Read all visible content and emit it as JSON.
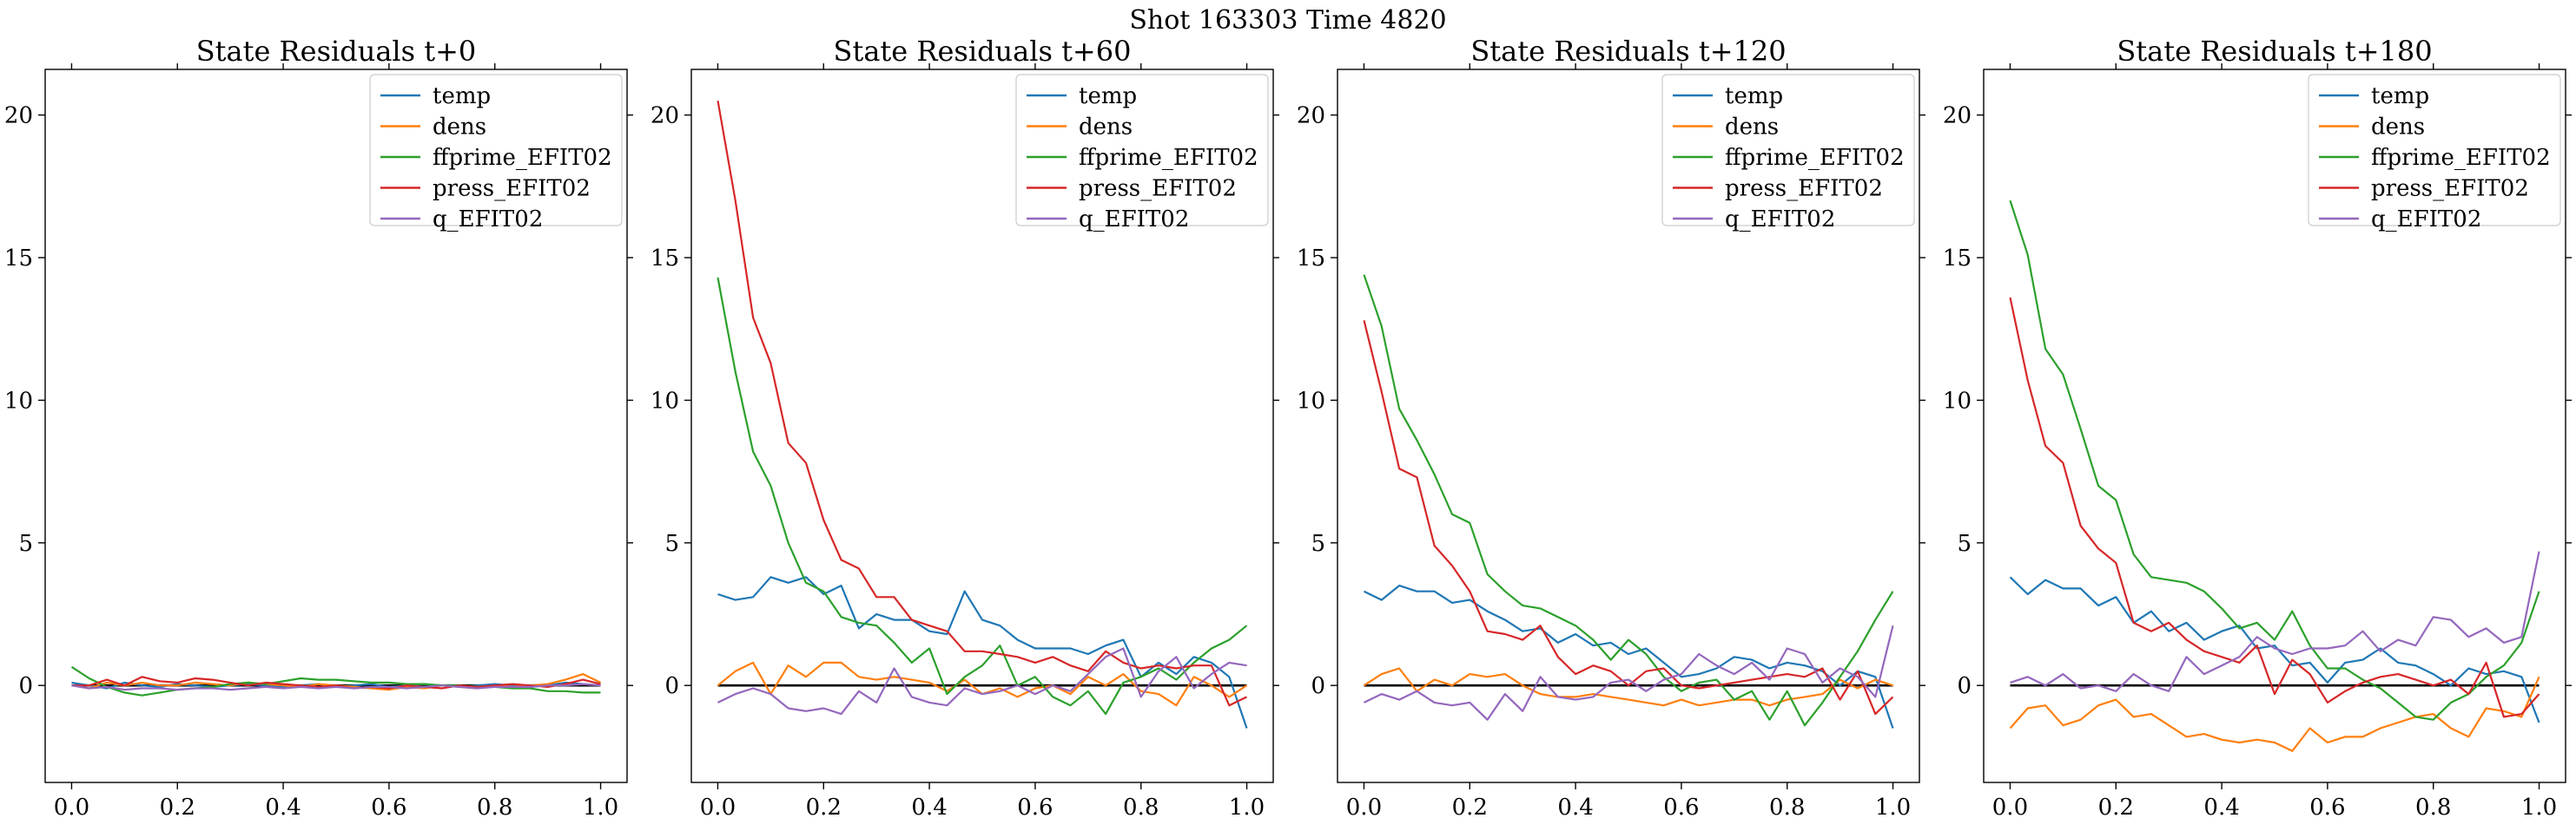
{
  "suptitle": "Shot 163303   Time 4820",
  "chart_data": [
    {
      "type": "line",
      "title": "State Residuals t+0",
      "xlabel": "",
      "ylabel": "",
      "xlim": [
        -0.05,
        1.05
      ],
      "ylim": [
        -3.4,
        21.6
      ],
      "xticks": [
        0.0,
        0.2,
        0.4,
        0.6,
        0.8,
        1.0
      ],
      "yticks": [
        0,
        5,
        10,
        15,
        20
      ],
      "grid": false,
      "legend_position": "upper-right",
      "zero_line": true,
      "x": [
        0.0,
        0.0333,
        0.0667,
        0.1,
        0.1333,
        0.1667,
        0.2,
        0.2333,
        0.2667,
        0.3,
        0.3333,
        0.3667,
        0.4,
        0.4333,
        0.4667,
        0.5,
        0.5333,
        0.5667,
        0.6,
        0.6333,
        0.6667,
        0.7,
        0.7333,
        0.7667,
        0.8,
        0.8333,
        0.8667,
        0.9,
        0.9333,
        0.9667,
        1.0
      ],
      "series": [
        {
          "name": "temp",
          "color": "#1f77b4",
          "values": [
            0.1,
            0.0,
            -0.1,
            0.1,
            0.0,
            -0.05,
            0.05,
            0.0,
            -0.05,
            0.0,
            0.05,
            0.0,
            -0.05,
            0.0,
            0.05,
            -0.05,
            0.0,
            0.05,
            -0.05,
            0.0,
            0.05,
            0.0,
            -0.05,
            0.0,
            0.05,
            0.0,
            -0.05,
            0.0,
            0.1,
            0.05,
            0.0
          ]
        },
        {
          "name": "dens",
          "color": "#ff7f0e",
          "values": [
            0.0,
            -0.1,
            0.1,
            0.0,
            0.1,
            0.0,
            0.0,
            0.1,
            0.05,
            0.0,
            0.1,
            0.05,
            0.0,
            -0.05,
            0.05,
            0.0,
            -0.05,
            -0.1,
            -0.15,
            -0.05,
            -0.1,
            0.0,
            -0.05,
            -0.1,
            0.0,
            -0.05,
            0.0,
            0.05,
            0.2,
            0.4,
            0.1
          ]
        },
        {
          "name": "ffprime_EFIT02",
          "color": "#2ca02c",
          "values": [
            0.65,
            0.25,
            -0.05,
            -0.25,
            -0.35,
            -0.25,
            -0.15,
            -0.1,
            -0.05,
            0.05,
            0.1,
            0.05,
            0.15,
            0.25,
            0.2,
            0.2,
            0.15,
            0.1,
            0.1,
            0.05,
            0.05,
            0.0,
            0.0,
            -0.05,
            -0.05,
            -0.1,
            -0.1,
            -0.2,
            -0.2,
            -0.25,
            -0.25
          ]
        },
        {
          "name": "press_EFIT02",
          "color": "#d62728",
          "values": [
            0.0,
            0.0,
            0.2,
            0.0,
            0.3,
            0.15,
            0.1,
            0.25,
            0.2,
            0.1,
            0.0,
            0.1,
            0.05,
            0.0,
            -0.05,
            0.0,
            -0.1,
            -0.05,
            -0.1,
            0.0,
            -0.05,
            -0.1,
            0.0,
            -0.05,
            0.0,
            0.05,
            0.0,
            -0.05,
            0.05,
            0.2,
            0.05
          ]
        },
        {
          "name": "q_EFIT02",
          "color": "#9467bd",
          "values": [
            0.0,
            -0.1,
            -0.05,
            -0.15,
            -0.1,
            -0.1,
            -0.15,
            -0.1,
            -0.1,
            -0.15,
            -0.1,
            -0.05,
            -0.1,
            -0.05,
            -0.1,
            -0.05,
            -0.1,
            -0.05,
            -0.05,
            -0.1,
            -0.05,
            0.0,
            -0.05,
            -0.1,
            -0.05,
            -0.05,
            -0.05,
            0.0,
            0.0,
            0.05,
            0.0
          ]
        }
      ]
    },
    {
      "type": "line",
      "title": "State Residuals t+60",
      "xlabel": "",
      "ylabel": "",
      "xlim": [
        -0.05,
        1.05
      ],
      "ylim": [
        -3.4,
        21.6
      ],
      "xticks": [
        0.0,
        0.2,
        0.4,
        0.6,
        0.8,
        1.0
      ],
      "yticks": [
        0,
        5,
        10,
        15,
        20
      ],
      "grid": false,
      "legend_position": "upper-right",
      "zero_line": true,
      "x": [
        0.0,
        0.0333,
        0.0667,
        0.1,
        0.1333,
        0.1667,
        0.2,
        0.2333,
        0.2667,
        0.3,
        0.3333,
        0.3667,
        0.4,
        0.4333,
        0.4667,
        0.5,
        0.5333,
        0.5667,
        0.6,
        0.6333,
        0.6667,
        0.7,
        0.7333,
        0.7667,
        0.8,
        0.8333,
        0.8667,
        0.9,
        0.9333,
        0.9667,
        1.0
      ],
      "series": [
        {
          "name": "temp",
          "color": "#1f77b4",
          "values": [
            3.2,
            3.0,
            3.1,
            3.8,
            3.6,
            3.8,
            3.2,
            3.5,
            2.0,
            2.5,
            2.3,
            2.3,
            1.9,
            1.8,
            3.3,
            2.3,
            2.1,
            1.6,
            1.3,
            1.3,
            1.3,
            1.1,
            1.4,
            1.6,
            0.3,
            0.8,
            0.4,
            1.0,
            0.8,
            0.3,
            -1.5
          ]
        },
        {
          "name": "dens",
          "color": "#ff7f0e",
          "values": [
            0.0,
            0.5,
            0.8,
            -0.3,
            0.7,
            0.3,
            0.8,
            0.8,
            0.3,
            0.2,
            0.3,
            0.2,
            0.1,
            -0.2,
            0.2,
            -0.3,
            -0.1,
            -0.4,
            -0.1,
            0.0,
            -0.3,
            0.3,
            0.0,
            0.4,
            -0.2,
            -0.3,
            -0.7,
            0.3,
            0.0,
            -0.4,
            0.0
          ]
        },
        {
          "name": "ffprime_EFIT02",
          "color": "#2ca02c",
          "values": [
            14.3,
            11.0,
            8.2,
            7.0,
            5.0,
            3.6,
            3.3,
            2.4,
            2.2,
            2.1,
            1.5,
            0.8,
            1.3,
            -0.3,
            0.3,
            0.7,
            1.4,
            0.0,
            0.3,
            -0.4,
            -0.7,
            -0.2,
            -1.0,
            0.1,
            0.3,
            0.6,
            0.2,
            0.8,
            1.3,
            1.6,
            2.1
          ]
        },
        {
          "name": "press_EFIT02",
          "color": "#d62728",
          "values": [
            20.5,
            17.0,
            12.9,
            11.3,
            8.5,
            7.8,
            5.8,
            4.4,
            4.1,
            3.1,
            3.1,
            2.3,
            2.1,
            1.9,
            1.2,
            1.2,
            1.1,
            1.0,
            0.8,
            1.0,
            0.7,
            0.5,
            1.2,
            0.8,
            0.6,
            0.7,
            0.6,
            0.7,
            0.7,
            -0.7,
            -0.4
          ]
        },
        {
          "name": "q_EFIT02",
          "color": "#9467bd",
          "values": [
            -0.6,
            -0.3,
            -0.1,
            -0.3,
            -0.8,
            -0.9,
            -0.8,
            -1.0,
            -0.2,
            -0.6,
            0.6,
            -0.4,
            -0.6,
            -0.7,
            -0.1,
            -0.3,
            -0.2,
            0.0,
            -0.3,
            0.0,
            -0.2,
            0.4,
            1.0,
            1.3,
            -0.4,
            0.5,
            1.0,
            -0.1,
            0.4,
            0.8,
            0.7
          ]
        }
      ]
    },
    {
      "type": "line",
      "title": "State Residuals t+120",
      "xlabel": "",
      "ylabel": "",
      "xlim": [
        -0.05,
        1.05
      ],
      "ylim": [
        -3.4,
        21.6
      ],
      "xticks": [
        0.0,
        0.2,
        0.4,
        0.6,
        0.8,
        1.0
      ],
      "yticks": [
        0,
        5,
        10,
        15,
        20
      ],
      "grid": false,
      "legend_position": "upper-right",
      "zero_line": true,
      "x": [
        0.0,
        0.0333,
        0.0667,
        0.1,
        0.1333,
        0.1667,
        0.2,
        0.2333,
        0.2667,
        0.3,
        0.3333,
        0.3667,
        0.4,
        0.4333,
        0.4667,
        0.5,
        0.5333,
        0.5667,
        0.6,
        0.6333,
        0.6667,
        0.7,
        0.7333,
        0.7667,
        0.8,
        0.8333,
        0.8667,
        0.9,
        0.9333,
        0.9667,
        1.0
      ],
      "series": [
        {
          "name": "temp",
          "color": "#1f77b4",
          "values": [
            3.3,
            3.0,
            3.5,
            3.3,
            3.3,
            2.9,
            3.0,
            2.6,
            2.3,
            1.9,
            2.0,
            1.5,
            1.8,
            1.4,
            1.5,
            1.1,
            1.3,
            0.8,
            0.3,
            0.4,
            0.6,
            1.0,
            0.9,
            0.6,
            0.8,
            0.7,
            0.5,
            0.0,
            0.5,
            0.3,
            -1.5
          ]
        },
        {
          "name": "dens",
          "color": "#ff7f0e",
          "values": [
            0.0,
            0.4,
            0.6,
            -0.2,
            0.2,
            0.0,
            0.4,
            0.3,
            0.4,
            0.0,
            -0.3,
            -0.4,
            -0.4,
            -0.3,
            -0.4,
            -0.5,
            -0.6,
            -0.7,
            -0.5,
            -0.7,
            -0.6,
            -0.5,
            -0.5,
            -0.7,
            -0.5,
            -0.4,
            -0.3,
            0.2,
            -0.1,
            0.2,
            0.0
          ]
        },
        {
          "name": "ffprime_EFIT02",
          "color": "#2ca02c",
          "values": [
            14.4,
            12.6,
            9.7,
            8.6,
            7.4,
            6.0,
            5.7,
            3.9,
            3.3,
            2.8,
            2.7,
            2.4,
            2.1,
            1.6,
            0.9,
            1.6,
            1.1,
            0.3,
            -0.2,
            0.1,
            0.2,
            -0.5,
            -0.2,
            -1.2,
            -0.2,
            -1.4,
            -0.6,
            0.3,
            1.2,
            2.3,
            3.3
          ]
        },
        {
          "name": "press_EFIT02",
          "color": "#d62728",
          "values": [
            12.8,
            10.3,
            7.6,
            7.3,
            4.9,
            4.2,
            3.3,
            1.9,
            1.8,
            1.6,
            2.1,
            1.0,
            0.4,
            0.7,
            0.5,
            0.0,
            0.5,
            0.6,
            0.0,
            -0.1,
            0.0,
            0.1,
            0.2,
            0.3,
            0.4,
            0.3,
            0.6,
            -0.5,
            0.5,
            -1.0,
            -0.4
          ]
        },
        {
          "name": "q_EFIT02",
          "color": "#9467bd",
          "values": [
            -0.6,
            -0.3,
            -0.5,
            -0.2,
            -0.6,
            -0.7,
            -0.6,
            -1.2,
            -0.3,
            -0.9,
            0.3,
            -0.4,
            -0.5,
            -0.4,
            0.1,
            0.2,
            -0.2,
            0.2,
            0.4,
            1.1,
            0.7,
            0.4,
            0.8,
            0.2,
            1.3,
            1.1,
            0.1,
            0.6,
            0.3,
            -0.4,
            2.1
          ]
        }
      ]
    },
    {
      "type": "line",
      "title": "State Residuals t+180",
      "xlabel": "",
      "ylabel": "",
      "xlim": [
        -0.05,
        1.05
      ],
      "ylim": [
        -3.4,
        21.6
      ],
      "xticks": [
        0.0,
        0.2,
        0.4,
        0.6,
        0.8,
        1.0
      ],
      "yticks": [
        0,
        5,
        10,
        15,
        20
      ],
      "grid": false,
      "legend_position": "upper-right",
      "zero_line": true,
      "x": [
        0.0,
        0.0333,
        0.0667,
        0.1,
        0.1333,
        0.1667,
        0.2,
        0.2333,
        0.2667,
        0.3,
        0.3333,
        0.3667,
        0.4,
        0.4333,
        0.4667,
        0.5,
        0.5333,
        0.5667,
        0.6,
        0.6333,
        0.6667,
        0.7,
        0.7333,
        0.7667,
        0.8,
        0.8333,
        0.8667,
        0.9,
        0.9333,
        0.9667,
        1.0
      ],
      "series": [
        {
          "name": "temp",
          "color": "#1f77b4",
          "values": [
            3.8,
            3.2,
            3.7,
            3.4,
            3.4,
            2.8,
            3.1,
            2.2,
            2.6,
            1.9,
            2.2,
            1.6,
            1.9,
            2.1,
            1.3,
            1.4,
            0.7,
            0.8,
            0.1,
            0.8,
            0.9,
            1.3,
            0.8,
            0.7,
            0.4,
            0.0,
            0.6,
            0.4,
            0.5,
            0.3,
            -1.3
          ]
        },
        {
          "name": "dens",
          "color": "#ff7f0e",
          "values": [
            -1.5,
            -0.8,
            -0.7,
            -1.4,
            -1.2,
            -0.7,
            -0.5,
            -1.1,
            -1.0,
            -1.4,
            -1.8,
            -1.7,
            -1.9,
            -2.0,
            -1.9,
            -2.0,
            -2.3,
            -1.5,
            -2.0,
            -1.8,
            -1.8,
            -1.5,
            -1.3,
            -1.1,
            -1.0,
            -1.5,
            -1.8,
            -0.8,
            -0.9,
            -1.1,
            0.3
          ]
        },
        {
          "name": "ffprime_EFIT02",
          "color": "#2ca02c",
          "values": [
            17.0,
            15.1,
            11.8,
            10.9,
            9.0,
            7.0,
            6.5,
            4.6,
            3.8,
            3.7,
            3.6,
            3.3,
            2.7,
            2.0,
            2.2,
            1.6,
            2.6,
            1.4,
            0.6,
            0.6,
            0.2,
            -0.1,
            -0.6,
            -1.1,
            -1.2,
            -0.6,
            -0.3,
            0.3,
            0.7,
            1.5,
            3.3
          ]
        },
        {
          "name": "press_EFIT02",
          "color": "#d62728",
          "values": [
            13.6,
            10.7,
            8.4,
            7.8,
            5.6,
            4.8,
            4.3,
            2.2,
            1.9,
            2.2,
            1.6,
            1.2,
            1.0,
            0.8,
            1.4,
            -0.3,
            0.9,
            0.4,
            -0.6,
            -0.2,
            0.1,
            0.3,
            0.4,
            0.2,
            0.0,
            0.2,
            -0.3,
            0.8,
            -1.1,
            -1.0,
            -0.3
          ]
        },
        {
          "name": "q_EFIT02",
          "color": "#9467bd",
          "values": [
            0.1,
            0.3,
            0.0,
            0.4,
            -0.1,
            0.0,
            -0.2,
            0.4,
            0.0,
            -0.2,
            1.0,
            0.4,
            0.7,
            1.0,
            1.7,
            1.3,
            1.1,
            1.3,
            1.3,
            1.4,
            1.9,
            1.2,
            1.6,
            1.4,
            2.4,
            2.3,
            1.7,
            2.0,
            1.5,
            1.7,
            4.7
          ]
        }
      ]
    }
  ]
}
